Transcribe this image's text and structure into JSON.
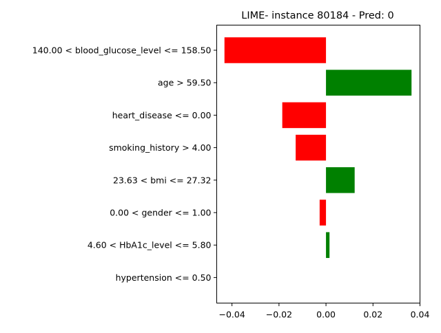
{
  "chart_data": {
    "type": "bar",
    "orientation": "horizontal",
    "title": "LIME- instance 80184 - Pred: 0",
    "xlabel": "",
    "ylabel": "",
    "xlim": [
      -0.0465,
      0.04
    ],
    "xticks": [
      -0.04,
      -0.02,
      0.0,
      0.02,
      0.04
    ],
    "xtick_labels": [
      "−0.04",
      "−0.02",
      "0.00",
      "0.02",
      "0.04"
    ],
    "grid": false,
    "colors": {
      "positive": "#008000",
      "negative": "#ff0000"
    },
    "categories": [
      "140.00 < blood_glucose_level <= 158.50",
      "age > 59.50",
      "heart_disease <= 0.00",
      "smoking_history > 4.00",
      "23.63 < bmi <= 27.32",
      "0.00 < gender <= 1.00",
      "4.60 < HbA1c_level <= 5.80",
      "hypertension <= 0.50"
    ],
    "values": [
      -0.0432,
      0.0364,
      -0.0186,
      -0.0129,
      0.0122,
      -0.0027,
      0.0015,
      0.0
    ]
  }
}
